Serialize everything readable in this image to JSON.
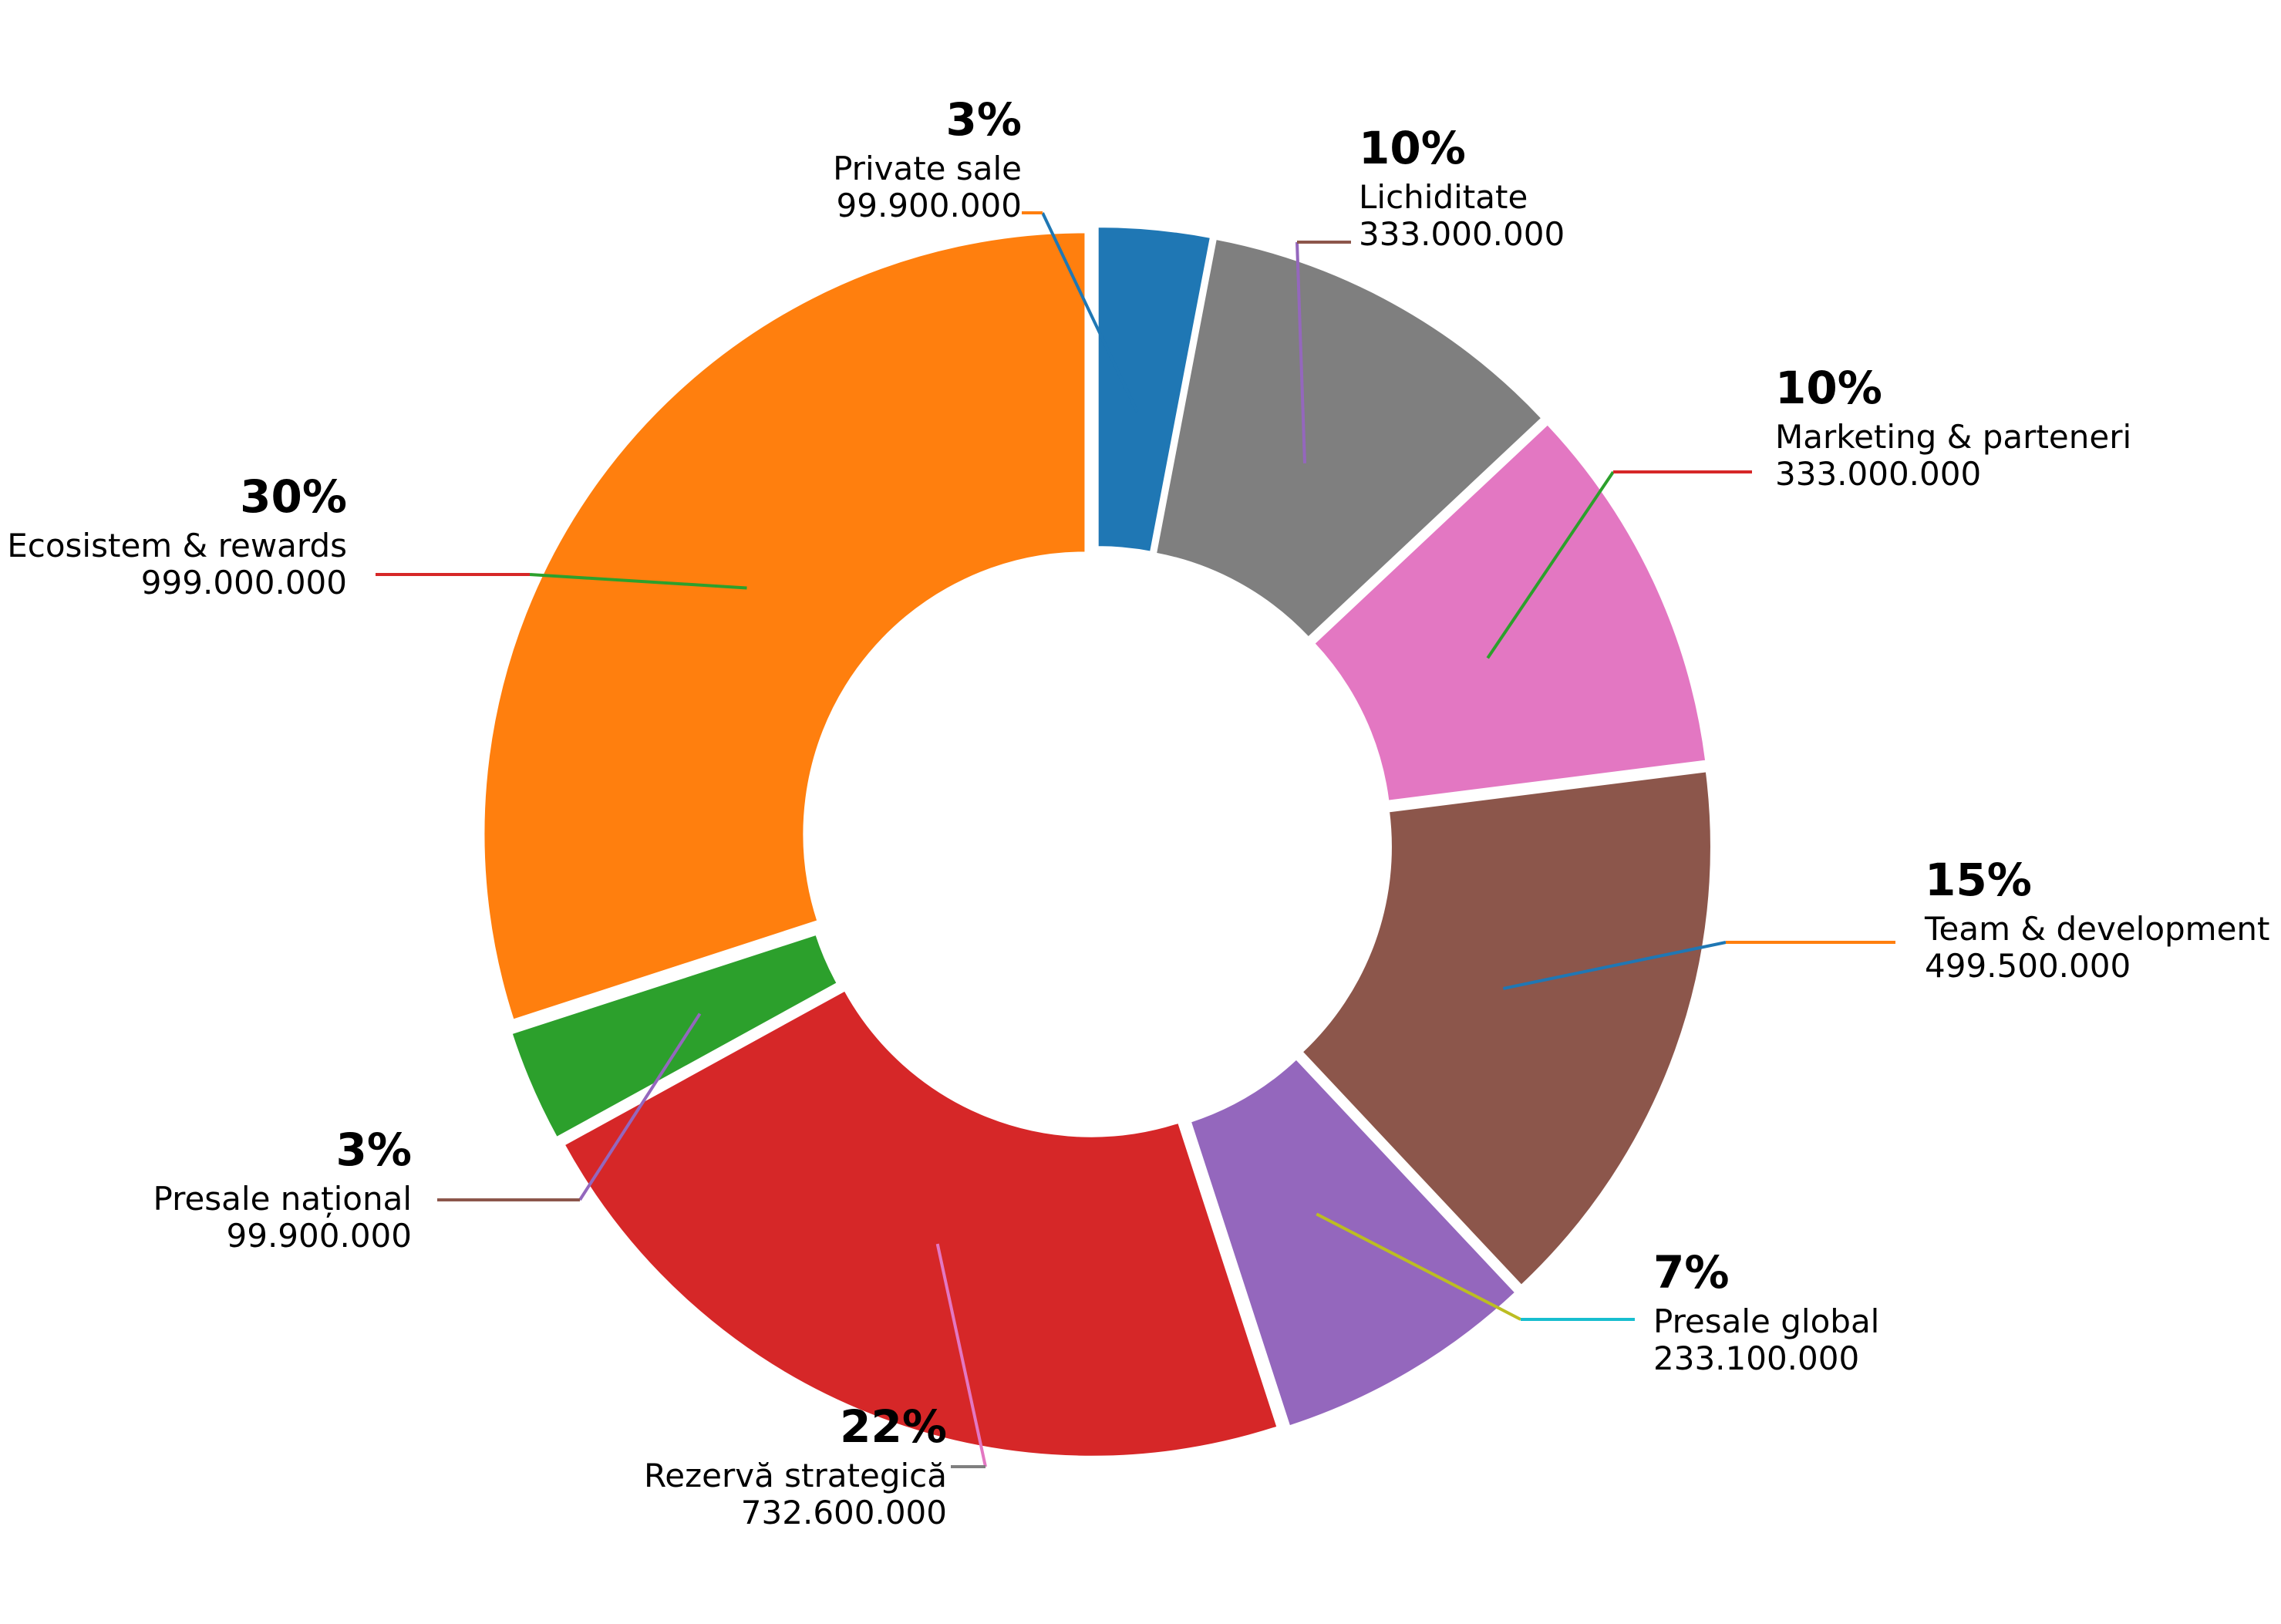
{
  "chart_data": {
    "type": "pie",
    "donut": true,
    "title": "",
    "slices": [
      {
        "label": "Private sale",
        "value": 99900000,
        "value_label": "99.900.000",
        "percent_label": "3%",
        "color": "#1f77b4",
        "leader_colors": [
          "#1f77b4",
          "#ff7f0e"
        ]
      },
      {
        "label": "Lichiditate",
        "value": 333000000,
        "value_label": "333.000.000",
        "percent_label": "10%",
        "color": "#7f7f7f",
        "leader_colors": [
          "#9467bd",
          "#8c564b"
        ]
      },
      {
        "label": "Marketing & parteneri",
        "value": 333000000,
        "value_label": "333.000.000",
        "percent_label": "10%",
        "color": "#e377c2",
        "leader_colors": [
          "#2ca02c",
          "#d62728"
        ]
      },
      {
        "label": "Team & development",
        "value": 499500000,
        "value_label": "499.500.000",
        "percent_label": "15%",
        "color": "#8c564b",
        "leader_colors": [
          "#1f77b4",
          "#ff7f0e"
        ]
      },
      {
        "label": "Presale global",
        "value": 233100000,
        "value_label": "233.100.000",
        "percent_label": "7%",
        "color": "#9467bd",
        "leader_colors": [
          "#bcbd22",
          "#17becf"
        ]
      },
      {
        "label": "Rezervă strategică",
        "value": 732600000,
        "value_label": "732.600.000",
        "percent_label": "22%",
        "color": "#d62728",
        "leader_colors": [
          "#e377c2",
          "#7f7f7f"
        ]
      },
      {
        "label": "Presale național",
        "value": 99900000,
        "value_label": "99.900.000",
        "percent_label": "3%",
        "color": "#2ca02c",
        "leader_colors": [
          "#9467bd",
          "#8c564b"
        ]
      },
      {
        "label": "Ecosistem & rewards",
        "value": 999000000,
        "value_label": "999.000.000",
        "percent_label": "30%",
        "color": "#ff7f0e",
        "leader_colors": [
          "#2ca02c",
          "#d62728"
        ]
      }
    ]
  }
}
